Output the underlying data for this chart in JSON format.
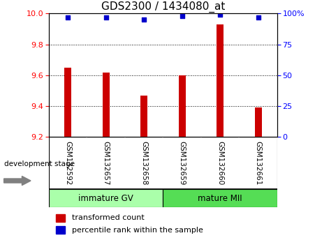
{
  "title": "GDS2300 / 1434080_at",
  "categories": [
    "GSM132592",
    "GSM132657",
    "GSM132658",
    "GSM132659",
    "GSM132660",
    "GSM132661"
  ],
  "bar_values": [
    9.65,
    9.62,
    9.47,
    9.6,
    9.93,
    9.39
  ],
  "bar_bottom": 9.2,
  "percentile_values": [
    97,
    97,
    95,
    98,
    99,
    97
  ],
  "bar_color": "#cc0000",
  "dot_color": "#0000cc",
  "ylim_left": [
    9.2,
    10.0
  ],
  "ylim_right": [
    0,
    100
  ],
  "yticks_left": [
    9.2,
    9.4,
    9.6,
    9.8,
    10.0
  ],
  "yticks_right": [
    0,
    25,
    50,
    75,
    100
  ],
  "ytick_labels_right": [
    "0",
    "25",
    "50",
    "75",
    "100%"
  ],
  "group_labels": [
    "immature GV",
    "mature MII"
  ],
  "group_colors_light": [
    "#aaffaa",
    "#55dd55"
  ],
  "group_ranges": [
    [
      0,
      3
    ],
    [
      3,
      6
    ]
  ],
  "legend_bar_label": "transformed count",
  "legend_dot_label": "percentile rank within the sample",
  "xlabel_left": "development stage",
  "tick_area_color": "#cccccc",
  "title_fontsize": 11,
  "tick_fontsize": 8,
  "label_fontsize": 8
}
